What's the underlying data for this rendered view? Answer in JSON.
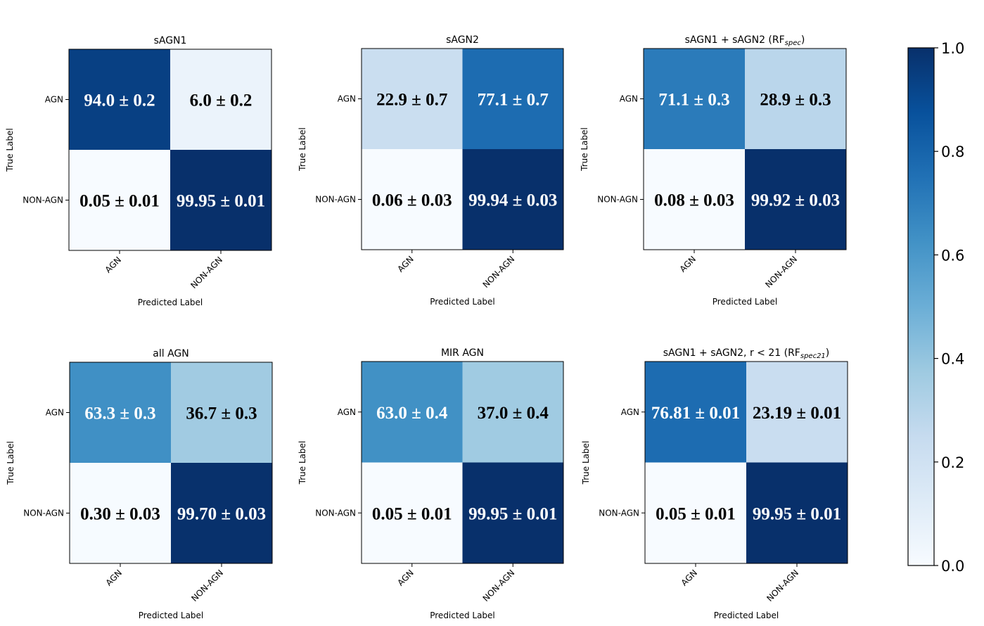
{
  "chart_data": {
    "type": "heatmap",
    "xlabel": "Predicted Label",
    "ylabel": "True Label",
    "class_labels": [
      "AGN",
      "NON-AGN"
    ],
    "colorbar": {
      "colormap": "Blues",
      "range": [
        0.0,
        1.0
      ],
      "ticks": [
        0.0,
        0.2,
        0.4,
        0.6,
        0.8,
        1.0
      ],
      "tick_labels": [
        "0.0",
        "0.2",
        "0.4",
        "0.6",
        "0.8",
        "1.0"
      ]
    },
    "panels": [
      {
        "title": "sAGN1",
        "title_sub": "",
        "title_suffix": "",
        "values": [
          [
            0.94,
            0.06
          ],
          [
            0.0005,
            0.9995
          ]
        ],
        "cell_labels": [
          [
            "94.0 ± 0.2",
            "6.0 ± 0.2"
          ],
          [
            "0.05 ± 0.01",
            "99.95 ± 0.01"
          ]
        ]
      },
      {
        "title": "sAGN2",
        "title_sub": "",
        "title_suffix": "",
        "values": [
          [
            0.229,
            0.771
          ],
          [
            0.0006,
            0.9994
          ]
        ],
        "cell_labels": [
          [
            "22.9 ± 0.7",
            "77.1 ± 0.7"
          ],
          [
            "0.06 ± 0.03",
            "99.94 ± 0.03"
          ]
        ]
      },
      {
        "title": "sAGN1 + sAGN2 (RF",
        "title_sub": "spec",
        "title_suffix": ")",
        "values": [
          [
            0.711,
            0.289
          ],
          [
            0.0008,
            0.9992
          ]
        ],
        "cell_labels": [
          [
            "71.1 ± 0.3",
            "28.9 ± 0.3"
          ],
          [
            "0.08 ± 0.03",
            "99.92 ± 0.03"
          ]
        ]
      },
      {
        "title": "all AGN",
        "title_sub": "",
        "title_suffix": "",
        "values": [
          [
            0.633,
            0.367
          ],
          [
            0.003,
            0.997
          ]
        ],
        "cell_labels": [
          [
            "63.3 ± 0.3",
            "36.7 ± 0.3"
          ],
          [
            "0.30 ± 0.03",
            "99.70 ± 0.03"
          ]
        ]
      },
      {
        "title": "MIR AGN",
        "title_sub": "",
        "title_suffix": "",
        "values": [
          [
            0.63,
            0.37
          ],
          [
            0.0005,
            0.9995
          ]
        ],
        "cell_labels": [
          [
            "63.0 ± 0.4",
            "37.0 ± 0.4"
          ],
          [
            "0.05 ± 0.01",
            "99.95 ± 0.01"
          ]
        ]
      },
      {
        "title": "sAGN1 + sAGN2, r < 21 (RF",
        "title_sub": "spec21",
        "title_suffix": ")",
        "values": [
          [
            0.7681,
            0.2319
          ],
          [
            0.0005,
            0.9995
          ]
        ],
        "cell_labels": [
          [
            "76.81 ± 0.01",
            "23.19 ± 0.01"
          ],
          [
            "0.05 ± 0.01",
            "99.95 ± 0.01"
          ]
        ]
      }
    ]
  }
}
